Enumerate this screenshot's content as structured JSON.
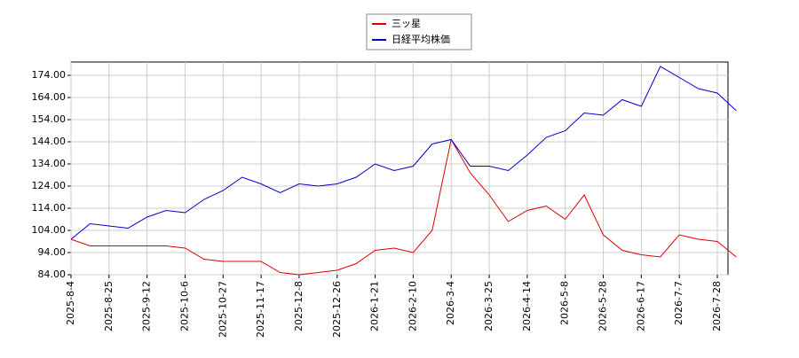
{
  "chart_data": {
    "type": "line",
    "categories": [
      "2025-8-4",
      null,
      "2025-8-25",
      null,
      "2025-9-12",
      null,
      "2025-10-6",
      null,
      "2025-10-27",
      null,
      "2025-11-17",
      null,
      "2025-12-8",
      null,
      "2025-12-26",
      null,
      "2026-1-21",
      null,
      "2026-2-10",
      null,
      "2026-3-4",
      null,
      "2026-3-25",
      null,
      "2026-4-14",
      null,
      "2026-5-8",
      null,
      "2026-5-28",
      null,
      "2026-6-17",
      null,
      "2026-7-7",
      null,
      "2026-7-28",
      null
    ],
    "series": [
      {
        "name": "三ッ星",
        "color": "#dd0000",
        "values": [
          100,
          97,
          97,
          97,
          97,
          97,
          96,
          91,
          90,
          90,
          90,
          85,
          84,
          85,
          86,
          89,
          95,
          96,
          94,
          104,
          145,
          130,
          120,
          108,
          113,
          115,
          109,
          120,
          102,
          95,
          93,
          92,
          102,
          100,
          99,
          92
        ]
      },
      {
        "name": "日経平均株価",
        "color": "#0000cc",
        "values": [
          100,
          107,
          106,
          105,
          110,
          113,
          112,
          118,
          122,
          128,
          125,
          121,
          125,
          124,
          125,
          128,
          134,
          131,
          133,
          143,
          145,
          133,
          133,
          131,
          138,
          146,
          149,
          157,
          156,
          163,
          160,
          178,
          173,
          168,
          166,
          158
        ]
      }
    ],
    "ylim": [
      84,
      180
    ],
    "yticks": [
      {
        "value": 84,
        "label": "84.00"
      },
      {
        "value": 94,
        "label": "94.00"
      },
      {
        "value": 104,
        "label": "104.00"
      },
      {
        "value": 114,
        "label": "114.00"
      },
      {
        "value": 124,
        "label": "124.00"
      },
      {
        "value": 134,
        "label": "134.00"
      },
      {
        "value": 144,
        "label": "144.00"
      },
      {
        "value": 154,
        "label": "154.00"
      },
      {
        "value": 164,
        "label": "164.00"
      },
      {
        "value": 174,
        "label": "174.00"
      }
    ],
    "grid": true,
    "legend": "upper center"
  }
}
